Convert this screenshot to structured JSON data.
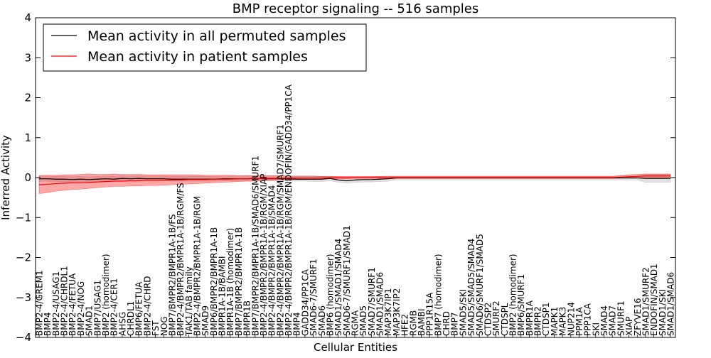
{
  "chart_data": {
    "type": "line",
    "title": "BMP receptor signaling -- 516 samples",
    "xlabel": "Cellular Entities",
    "ylabel": "Inferred Activity",
    "ylim": [
      -4,
      4
    ],
    "yticks": [
      4,
      3,
      2,
      1,
      0,
      -1,
      -2,
      -3,
      -4
    ],
    "ytick_labels": [
      "4",
      "3",
      "2",
      "1",
      "0",
      "−1",
      "−2",
      "−3",
      "−4"
    ],
    "grid": false,
    "legend_position": "top-left",
    "categories": [
      "BMP2-4/GREM1",
      "BMP4",
      "BMP2-4/USAG1",
      "BMP2-4/CHRDL1",
      "BMP2-4/FETUA",
      "BMP2-4/NOG",
      "SMAD1",
      "BMP7/USAG1",
      "BMP2 (homodimer)",
      "BMP2-4/CER1",
      "AHSG",
      "CHRDL1",
      "BMP6/FETUA",
      "BMP2-4/CHRD",
      "FST",
      "NOG",
      "BMP7/BMPR2/BMPR1A-1B/FS",
      "BMP2-4/BMPR2/BMPR1A-1B/RGM/FS",
      "TAK1/TAB family",
      "BMP2-4/BMPR2/BMPR1A-1B/RGM",
      "SMAD9",
      "BMP6/BMPR2/BMPR1A-1B",
      "BMPR1A-1B/BAMBI",
      "BMPR1A-1B (homodimer)",
      "BMP7/BMPR2/BMPR1A-1B",
      "BMPR1B",
      "BMP7/BMPR2/BMPR1A-1B/SMAD6/SMURF1",
      "BMP2-4/BMPR2/BMPR1A-1B/RGM/XIAP",
      "BMP2-4/BMPR2/BMPR1A-1B/SMAD4",
      "BMP2-4/BMPR2/BMPR1A-1B/RGM/SMAD7/SMURF1",
      "BMP2-4/BMPR2/BMPR1A-1B/RGM/ENDOFIN/GADD34/PP1CA",
      "BMP4",
      "GADD34/PP1CA",
      "SMAD6-7/SMURF1",
      "SMAD6",
      "BMP6 (homodimer)",
      "SMAD1/SMAD1/SMAD4",
      "SMAD6-7/SMURF1/SMAD1",
      "RGMA",
      "SMAD5",
      "SMAD7/SMURF1",
      "SMAD1/SMAD6",
      "MAP3K7IP1",
      "MAP3K7IP2",
      "HFE2",
      "RGMB",
      "BAMBI",
      "PPP1R15A",
      "BMP7 (homodimer)",
      "CHRD",
      "BMP7",
      "SMAD5/SKI",
      "SMAD5/SMAD5/SMAD4",
      "SMAD6/SMURF1/SMAD5",
      "CTDSP2",
      "SMURF2",
      "CTDSPL",
      "BMP2 (homodimer)",
      "BMP6/SMURF1",
      "BMPR1A",
      "BMPR2",
      "CTDSP1",
      "MAPK1",
      "MAPK3",
      "NUP214",
      "PPM1A",
      "PPP1CA",
      "SKI",
      "SMAD4",
      "SMAD7",
      "SMURF1",
      "XIAP",
      "ZFYVE16",
      "SMAD1/SMURF2",
      "ENDOFIN/SMAD1",
      "SMAD1/SKI",
      "SMAD1/SMAD6"
    ],
    "series": [
      {
        "name": "Mean activity in all permuted samples",
        "color": "#000000",
        "values": [
          -0.03,
          -0.03,
          -0.04,
          -0.04,
          -0.05,
          -0.04,
          -0.05,
          -0.04,
          -0.03,
          -0.04,
          -0.02,
          -0.03,
          -0.02,
          -0.03,
          -0.03,
          -0.03,
          -0.04,
          -0.04,
          -0.04,
          -0.04,
          -0.04,
          -0.04,
          -0.03,
          -0.03,
          -0.03,
          -0.03,
          -0.02,
          -0.03,
          -0.03,
          -0.03,
          -0.03,
          -0.04,
          -0.04,
          -0.04,
          -0.04,
          -0.02,
          -0.06,
          -0.08,
          -0.06,
          -0.05,
          -0.05,
          -0.04,
          -0.03,
          -0.01,
          -0.01,
          -0.01,
          -0.01,
          -0.01,
          -0.01,
          -0.01,
          -0.01,
          -0.01,
          -0.01,
          -0.01,
          -0.01,
          -0.01,
          -0.01,
          -0.01,
          -0.01,
          -0.01,
          -0.01,
          -0.01,
          -0.01,
          -0.01,
          -0.01,
          -0.01,
          -0.01,
          -0.01,
          -0.01,
          -0.01,
          -0.01,
          -0.01,
          -0.01,
          -0.02,
          -0.02,
          -0.02,
          -0.02
        ],
        "band_low": [
          -0.09,
          -0.09,
          -0.1,
          -0.1,
          -0.11,
          -0.1,
          -0.11,
          -0.1,
          -0.09,
          -0.1,
          -0.07,
          -0.08,
          -0.07,
          -0.08,
          -0.08,
          -0.08,
          -0.09,
          -0.09,
          -0.09,
          -0.09,
          -0.09,
          -0.09,
          -0.08,
          -0.08,
          -0.08,
          -0.08,
          -0.07,
          -0.08,
          -0.08,
          -0.08,
          -0.08,
          -0.09,
          -0.09,
          -0.1,
          -0.1,
          -0.08,
          -0.12,
          -0.14,
          -0.12,
          -0.11,
          -0.11,
          -0.1,
          -0.09,
          -0.06,
          -0.06,
          -0.06,
          -0.06,
          -0.06,
          -0.06,
          -0.06,
          -0.06,
          -0.06,
          -0.06,
          -0.06,
          -0.06,
          -0.06,
          -0.06,
          -0.06,
          -0.06,
          -0.06,
          -0.06,
          -0.06,
          -0.06,
          -0.06,
          -0.06,
          -0.06,
          -0.06,
          -0.06,
          -0.06,
          -0.06,
          -0.06,
          -0.06,
          -0.06,
          -0.12,
          -0.12,
          -0.12,
          -0.12
        ],
        "band_high": [
          0.04,
          0.04,
          0.03,
          0.03,
          0.02,
          0.03,
          0.02,
          0.03,
          0.04,
          0.03,
          0.05,
          0.04,
          0.05,
          0.04,
          0.04,
          0.04,
          0.03,
          0.03,
          0.03,
          0.03,
          0.03,
          0.03,
          0.04,
          0.04,
          0.04,
          0.04,
          0.05,
          0.04,
          0.04,
          0.04,
          0.04,
          0.03,
          0.03,
          0.03,
          0.03,
          0.04,
          0.01,
          0.0,
          0.01,
          0.02,
          0.02,
          0.03,
          0.04,
          0.04,
          0.04,
          0.04,
          0.04,
          0.04,
          0.04,
          0.04,
          0.04,
          0.04,
          0.04,
          0.04,
          0.04,
          0.04,
          0.04,
          0.04,
          0.04,
          0.04,
          0.04,
          0.04,
          0.04,
          0.04,
          0.04,
          0.04,
          0.04,
          0.04,
          0.04,
          0.04,
          0.04,
          0.04,
          0.04,
          0.08,
          0.08,
          0.08,
          0.08
        ]
      },
      {
        "name": "Mean activity in patient samples",
        "color": "#ff0000",
        "values": [
          -0.18,
          -0.17,
          -0.15,
          -0.14,
          -0.13,
          -0.13,
          -0.12,
          -0.11,
          -0.1,
          -0.09,
          -0.09,
          -0.08,
          -0.08,
          -0.07,
          -0.07,
          -0.07,
          -0.06,
          -0.06,
          -0.05,
          -0.05,
          -0.05,
          -0.04,
          -0.04,
          -0.04,
          -0.03,
          -0.03,
          -0.03,
          -0.02,
          -0.02,
          -0.02,
          -0.01,
          -0.01,
          -0.01,
          -0.01,
          -0.01,
          0.0,
          0.0,
          0.0,
          0.0,
          0.0,
          0.0,
          0.0,
          0.0,
          0.0,
          0.0,
          0.0,
          0.0,
          0.0,
          0.0,
          0.0,
          0.0,
          0.0,
          0.0,
          0.0,
          0.0,
          0.0,
          0.0,
          0.0,
          0.0,
          0.0,
          0.0,
          0.0,
          0.0,
          0.0,
          0.0,
          0.0,
          0.0,
          0.0,
          0.0,
          0.0,
          0.01,
          0.02,
          0.03,
          0.04,
          0.04,
          0.04,
          0.04
        ],
        "band_low": [
          -0.4,
          -0.38,
          -0.34,
          -0.32,
          -0.3,
          -0.29,
          -0.27,
          -0.25,
          -0.24,
          -0.22,
          -0.22,
          -0.21,
          -0.21,
          -0.2,
          -0.2,
          -0.19,
          -0.18,
          -0.17,
          -0.16,
          -0.15,
          -0.14,
          -0.13,
          -0.12,
          -0.11,
          -0.1,
          -0.09,
          -0.09,
          -0.08,
          -0.07,
          -0.06,
          -0.05,
          -0.05,
          -0.04,
          -0.04,
          -0.04,
          -0.03,
          -0.03,
          -0.03,
          -0.02,
          -0.02,
          -0.02,
          -0.02,
          -0.02,
          -0.02,
          -0.02,
          -0.02,
          -0.02,
          -0.02,
          -0.02,
          -0.02,
          -0.02,
          -0.02,
          -0.02,
          -0.02,
          -0.02,
          -0.02,
          -0.02,
          -0.02,
          -0.02,
          -0.02,
          -0.02,
          -0.02,
          -0.02,
          -0.02,
          -0.02,
          -0.02,
          -0.02,
          -0.02,
          -0.02,
          -0.02,
          -0.01,
          0.0,
          0.0,
          0.0,
          0.0,
          0.0,
          0.0
        ],
        "band_high": [
          0.05,
          0.06,
          0.06,
          0.07,
          0.07,
          0.08,
          0.09,
          0.08,
          0.08,
          0.09,
          0.08,
          0.08,
          0.08,
          0.07,
          0.07,
          0.07,
          0.07,
          0.07,
          0.07,
          0.07,
          0.06,
          0.06,
          0.06,
          0.06,
          0.05,
          0.05,
          0.05,
          0.05,
          0.05,
          0.05,
          0.04,
          0.04,
          0.04,
          0.04,
          0.03,
          0.03,
          0.03,
          0.03,
          0.03,
          0.03,
          0.03,
          0.03,
          0.03,
          0.03,
          0.03,
          0.03,
          0.03,
          0.03,
          0.03,
          0.03,
          0.03,
          0.03,
          0.03,
          0.03,
          0.03,
          0.03,
          0.03,
          0.03,
          0.03,
          0.03,
          0.03,
          0.03,
          0.03,
          0.03,
          0.03,
          0.03,
          0.03,
          0.03,
          0.03,
          0.03,
          0.05,
          0.07,
          0.08,
          0.09,
          0.09,
          0.09,
          0.09
        ]
      }
    ],
    "band_colors": {
      "permuted": "#cccccc",
      "patient": "#ff0000"
    }
  }
}
